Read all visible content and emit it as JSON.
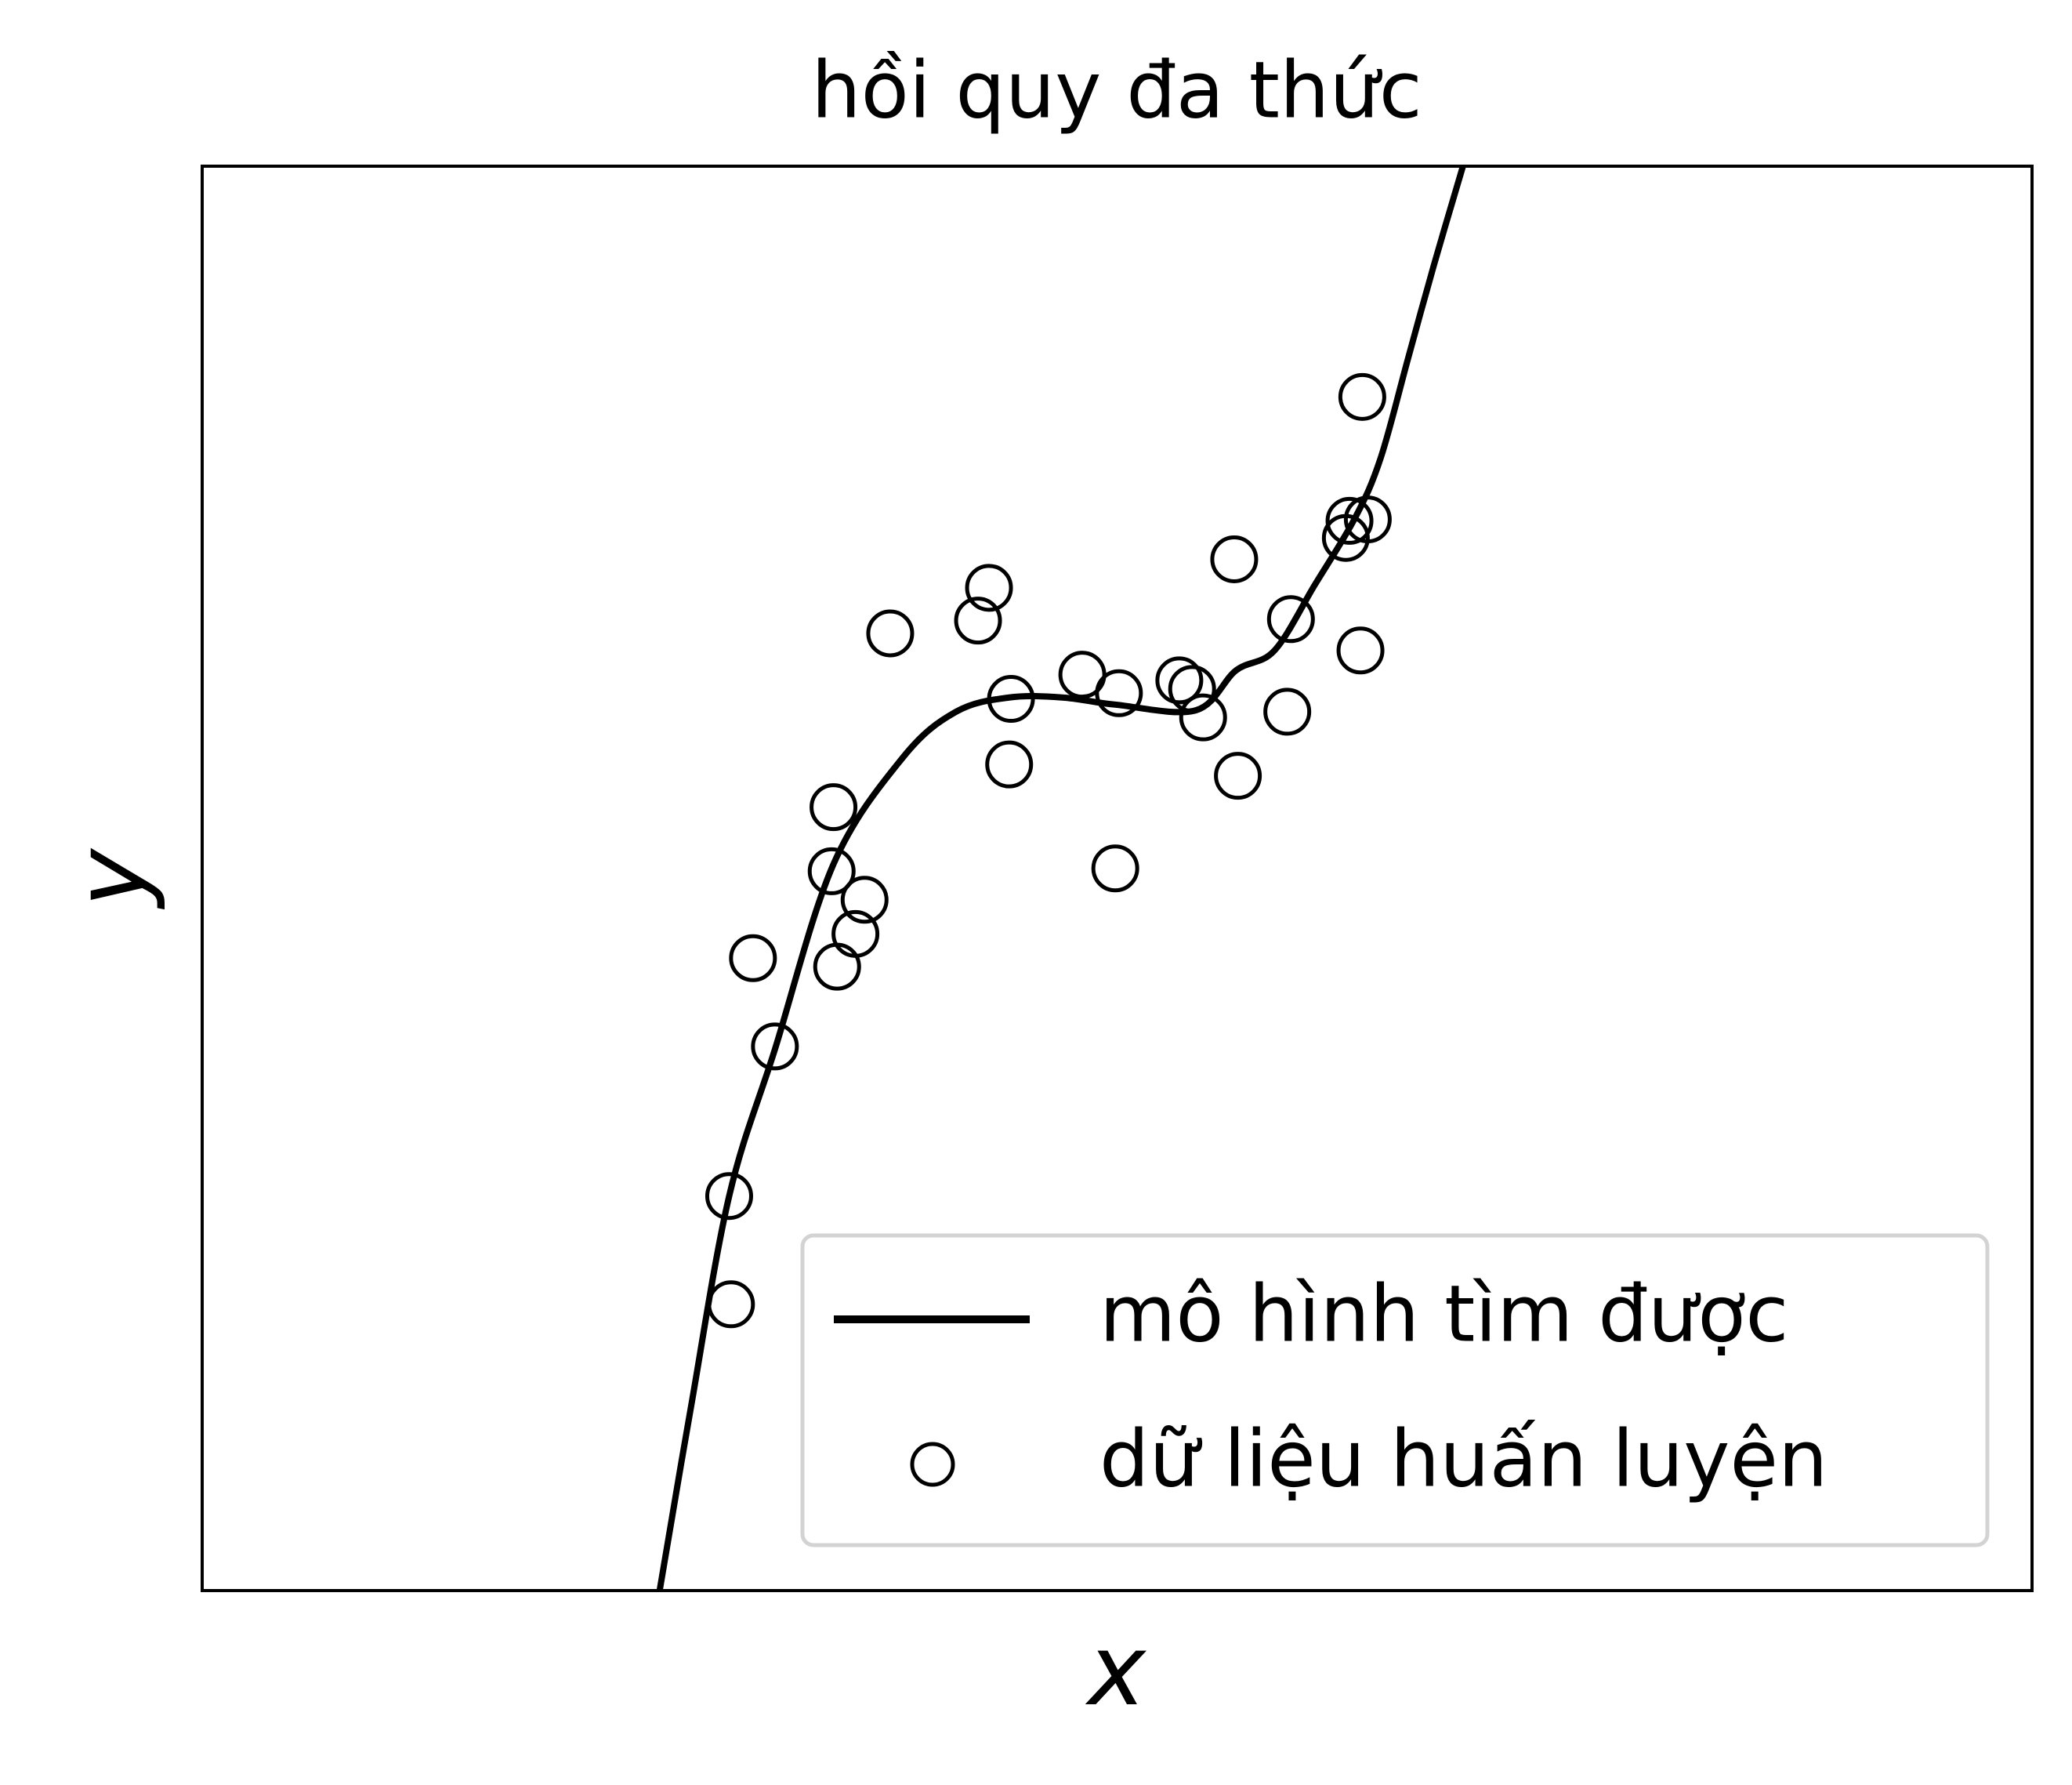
{
  "chart_data": {
    "type": "line",
    "title": "hồi quy đa thức",
    "xlabel": "x",
    "ylabel": "y",
    "xlim": [
      0,
      100
    ],
    "ylim": [
      0,
      100
    ],
    "legend": "lower right",
    "series": [
      {
        "name": "mô hình tìm được",
        "type": "line",
        "color": "#000000",
        "x": [
          25.0,
          26.7,
          28.8,
          31.3,
          34.5,
          38.3,
          41.2,
          44.1,
          47.0,
          49.9,
          54.3,
          56.5,
          58.6,
          60.8,
          63.0,
          64.4,
          65.9,
          67.3,
          68.9
        ],
        "y": [
          0,
          12.8,
          27.7,
          38.0,
          51.0,
          58.5,
          61.7,
          62.7,
          62.7,
          62.2,
          61.8,
          64.6,
          66.0,
          70.6,
          75.3,
          79.5,
          86.5,
          93.0,
          100
        ]
      },
      {
        "name": "dữ liệu huấn luyện",
        "type": "scatter",
        "color": "#000000",
        "x": [
          63.4,
          62.7,
          63.7,
          62.5,
          56.4,
          43.0,
          42.4,
          37.6,
          59.5,
          63.3,
          48.1,
          53.4,
          54.1,
          50.1,
          44.2,
          54.7,
          59.3,
          44.1,
          56.6,
          34.5,
          49.9,
          34.4,
          36.2,
          35.7,
          34.7,
          30.1,
          31.3,
          28.8,
          28.9
        ],
        "y": [
          83.8,
          75.1,
          75.2,
          73.9,
          72.4,
          70.4,
          68.1,
          67.2,
          68.2,
          66.0,
          64.3,
          63.9,
          63.3,
          63.0,
          62.6,
          61.3,
          61.7,
          58.0,
          57.2,
          55.0,
          50.7,
          50.5,
          48.5,
          46.1,
          43.8,
          44.4,
          38.2,
          27.7,
          20.1
        ]
      }
    ]
  }
}
